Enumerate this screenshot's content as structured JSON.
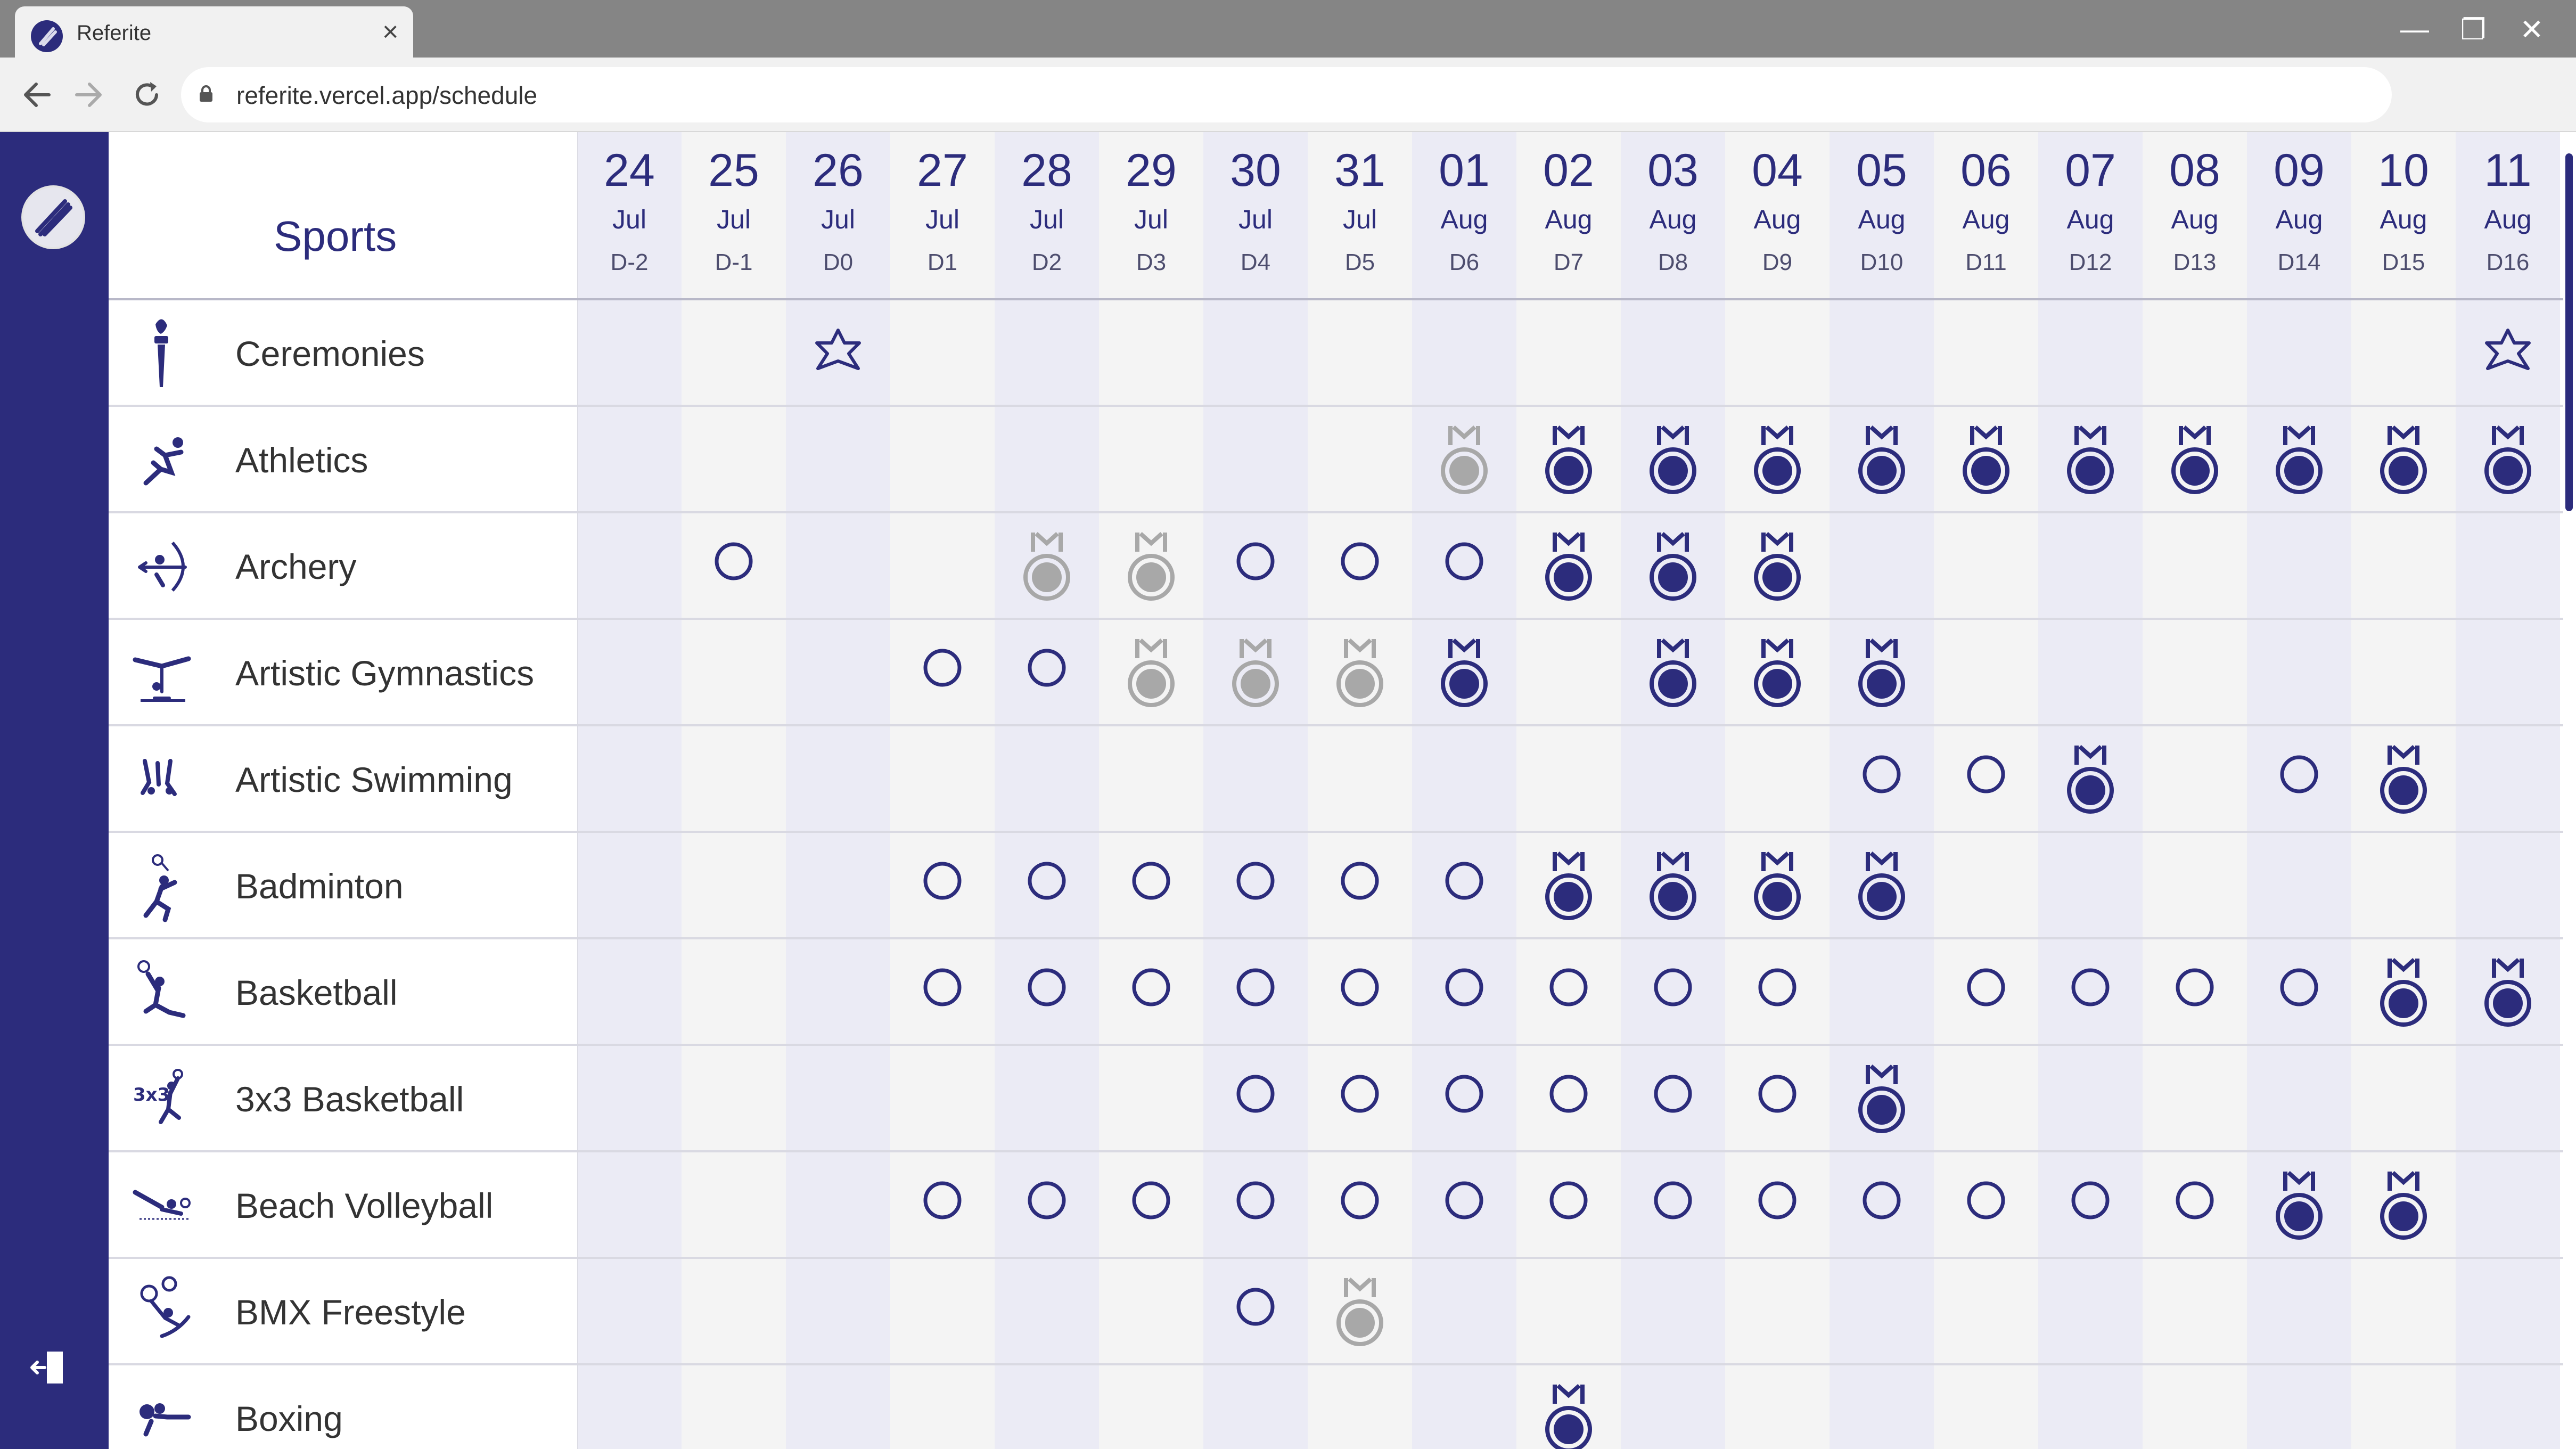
{
  "browser": {
    "tab_title": "Referite",
    "url": "referite.vercel.app/schedule",
    "tab_close": "×",
    "controls": [
      "—",
      "❐",
      "✕"
    ]
  },
  "schedule": {
    "heading": "Sports",
    "days": [
      {
        "date": "24",
        "month": "Jul",
        "code": "D-2"
      },
      {
        "date": "25",
        "month": "Jul",
        "code": "D-1"
      },
      {
        "date": "26",
        "month": "Jul",
        "code": "D0"
      },
      {
        "date": "27",
        "month": "Jul",
        "code": "D1"
      },
      {
        "date": "28",
        "month": "Jul",
        "code": "D2"
      },
      {
        "date": "29",
        "month": "Jul",
        "code": "D3"
      },
      {
        "date": "30",
        "month": "Jul",
        "code": "D4"
      },
      {
        "date": "31",
        "month": "Jul",
        "code": "D5"
      },
      {
        "date": "01",
        "month": "Aug",
        "code": "D6"
      },
      {
        "date": "02",
        "month": "Aug",
        "code": "D7"
      },
      {
        "date": "03",
        "month": "Aug",
        "code": "D8"
      },
      {
        "date": "04",
        "month": "Aug",
        "code": "D9"
      },
      {
        "date": "05",
        "month": "Aug",
        "code": "D10"
      },
      {
        "date": "06",
        "month": "Aug",
        "code": "D11"
      },
      {
        "date": "07",
        "month": "Aug",
        "code": "D12"
      },
      {
        "date": "08",
        "month": "Aug",
        "code": "D13"
      },
      {
        "date": "09",
        "month": "Aug",
        "code": "D14"
      },
      {
        "date": "10",
        "month": "Aug",
        "code": "D15"
      },
      {
        "date": "11",
        "month": "Aug",
        "code": "D16"
      }
    ],
    "legend_colors": {
      "primary": "#2c2c7c",
      "medal_past": "#a8a8a8",
      "alt_column": "#ebebf5",
      "plain_column": "#f4f4f4"
    },
    "sports": [
      {
        "name": "Ceremonies",
        "icon": "torch-icon",
        "events": [
          null,
          null,
          "ceremony",
          null,
          null,
          null,
          null,
          null,
          null,
          null,
          null,
          null,
          null,
          null,
          null,
          null,
          null,
          null,
          "ceremony"
        ]
      },
      {
        "name": "Athletics",
        "icon": "athletics-icon",
        "events": [
          null,
          null,
          null,
          null,
          null,
          null,
          null,
          null,
          "medal-past",
          "medal",
          "medal",
          "medal",
          "medal",
          "medal",
          "medal",
          "medal",
          "medal",
          "medal",
          "medal"
        ]
      },
      {
        "name": "Archery",
        "icon": "archery-icon",
        "events": [
          null,
          "competition",
          null,
          null,
          "medal-past",
          "medal-past",
          "competition",
          "competition",
          "competition",
          "medal",
          "medal",
          "medal",
          null,
          null,
          null,
          null,
          null,
          null,
          null
        ]
      },
      {
        "name": "Artistic Gymnastics",
        "icon": "gymnastics-icon",
        "events": [
          null,
          null,
          null,
          "competition",
          "competition",
          "medal-past",
          "medal-past",
          "medal-past",
          "medal",
          null,
          "medal",
          "medal",
          "medal",
          null,
          null,
          null,
          null,
          null,
          null
        ]
      },
      {
        "name": "Artistic Swimming",
        "icon": "artistic-swimming-icon",
        "events": [
          null,
          null,
          null,
          null,
          null,
          null,
          null,
          null,
          null,
          null,
          null,
          null,
          "competition",
          "competition",
          "medal",
          null,
          "competition",
          "medal",
          null
        ]
      },
      {
        "name": "Badminton",
        "icon": "badminton-icon",
        "events": [
          null,
          null,
          null,
          "competition",
          "competition",
          "competition",
          "competition",
          "competition",
          "competition",
          "medal",
          "medal",
          "medal",
          "medal",
          null,
          null,
          null,
          null,
          null,
          null
        ]
      },
      {
        "name": "Basketball",
        "icon": "basketball-icon",
        "events": [
          null,
          null,
          null,
          "competition",
          "competition",
          "competition",
          "competition",
          "competition",
          "competition",
          "competition",
          "competition",
          "competition",
          null,
          "competition",
          "competition",
          "competition",
          "competition",
          "medal",
          "medal"
        ]
      },
      {
        "name": "3x3 Basketball",
        "icon": "basketball-3x3-icon",
        "events": [
          null,
          null,
          null,
          null,
          null,
          null,
          "competition",
          "competition",
          "competition",
          "competition",
          "competition",
          "competition",
          "medal",
          null,
          null,
          null,
          null,
          null,
          null
        ]
      },
      {
        "name": "Beach Volleyball",
        "icon": "beach-volleyball-icon",
        "events": [
          null,
          null,
          null,
          "competition",
          "competition",
          "competition",
          "competition",
          "competition",
          "competition",
          "competition",
          "competition",
          "competition",
          "competition",
          "competition",
          "competition",
          "competition",
          "medal",
          "medal",
          null
        ]
      },
      {
        "name": "BMX Freestyle",
        "icon": "bmx-freestyle-icon",
        "events": [
          null,
          null,
          null,
          null,
          null,
          null,
          "competition",
          "medal-past",
          null,
          null,
          null,
          null,
          null,
          null,
          null,
          null,
          null,
          null,
          null
        ]
      },
      {
        "name": "Boxing",
        "icon": "boxing-icon",
        "events": [
          null,
          null,
          null,
          null,
          null,
          null,
          null,
          null,
          null,
          "medal",
          null,
          null,
          null,
          null,
          null,
          null,
          null,
          null,
          null
        ]
      }
    ]
  }
}
